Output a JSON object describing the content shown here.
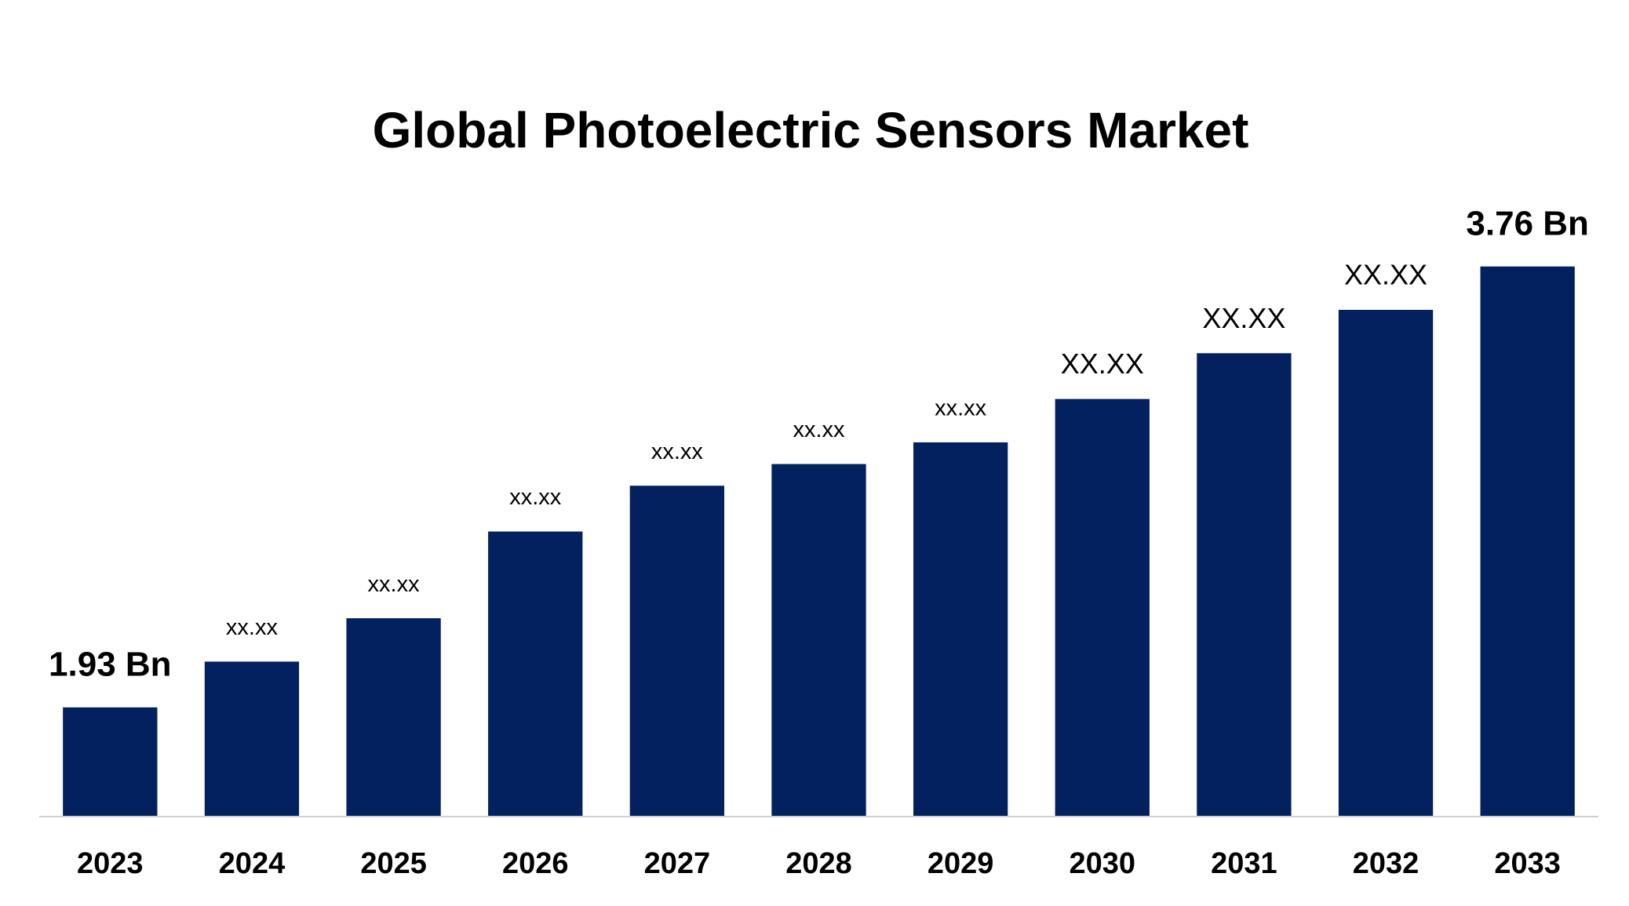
{
  "chart_data": {
    "type": "bar",
    "title": "Global Photoelectric Sensors Market",
    "categories": [
      "2023",
      "2024",
      "2025",
      "2026",
      "2027",
      "2028",
      "2029",
      "2030",
      "2031",
      "2032",
      "2033"
    ],
    "values": [
      1.93,
      2.12,
      2.3,
      2.66,
      2.85,
      2.94,
      3.03,
      3.21,
      3.4,
      3.58,
      3.76
    ],
    "value_labels": [
      "1.93 Bn",
      "xx.xx",
      "xx.xx",
      "xx.xx",
      "xx.xx",
      "xx.xx",
      "xx.xx",
      "XX.XX",
      "XX.XX",
      "XX.XX",
      "3.76 Bn"
    ],
    "color": "#03215e",
    "ylim": [
      1.48,
      4.0
    ]
  }
}
